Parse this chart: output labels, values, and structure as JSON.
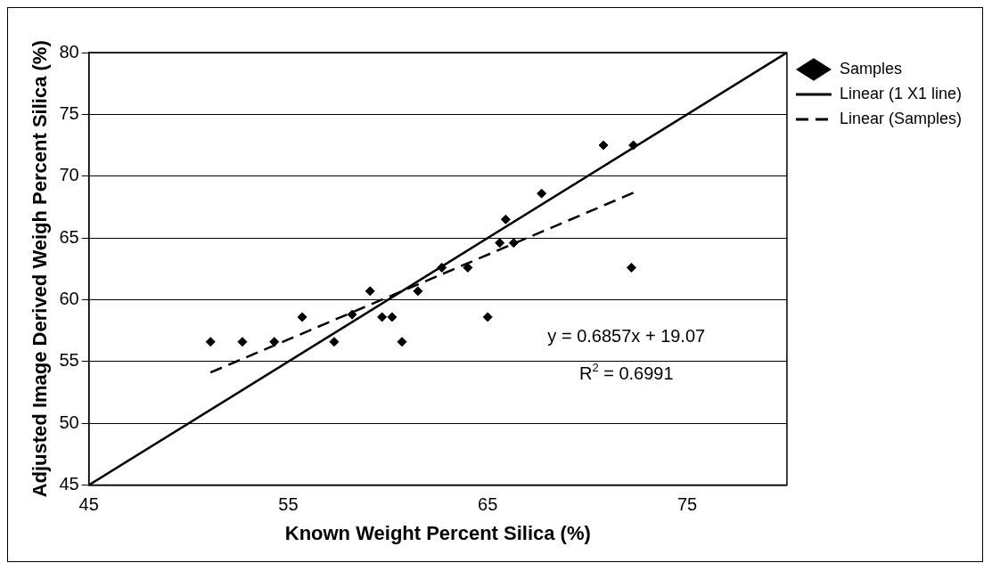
{
  "chart_data": {
    "type": "scatter",
    "xlabel": "Known Weight Percent Silica (%)",
    "ylabel": "Adjusted Image Derived Weigh Percent Silica (%)",
    "xlim": [
      45,
      80
    ],
    "xticks": [
      45,
      55,
      65,
      75
    ],
    "ylim": [
      45,
      80
    ],
    "yticks": [
      45,
      50,
      55,
      60,
      65,
      70,
      75,
      80
    ],
    "grid": "y",
    "legend": "right",
    "series": [
      {
        "name": "Samples",
        "type": "scatter",
        "marker": "diamond",
        "color": "#000000",
        "x": [
          51.1,
          52.7,
          54.3,
          55.7,
          57.3,
          58.2,
          59.1,
          59.7,
          60.2,
          60.7,
          61.5,
          62.7,
          64.0,
          65.0,
          65.6,
          66.3,
          65.9,
          67.7,
          70.8,
          72.3,
          72.2
        ],
        "values": [
          56.6,
          56.6,
          56.6,
          58.6,
          56.6,
          58.8,
          60.7,
          58.6,
          58.6,
          56.6,
          60.7,
          62.6,
          62.6,
          58.6,
          64.6,
          64.6,
          66.5,
          68.6,
          72.5,
          72.5,
          62.6
        ]
      },
      {
        "name": "Linear (1 X1 line)",
        "type": "line",
        "line_style": "solid",
        "marker": "none",
        "color": "#000000",
        "x": [
          45,
          80
        ],
        "values": [
          45,
          80
        ]
      },
      {
        "name": "Linear (Samples)",
        "type": "line",
        "line_style": "dashed",
        "marker": "none",
        "color": "#000000",
        "x": [
          51.1,
          72.3
        ],
        "values": [
          54.11,
          68.65
        ]
      }
    ],
    "annotations": [
      "y = 0.6857x + 19.07",
      "R$^{2}$ = 0.6991"
    ]
  }
}
